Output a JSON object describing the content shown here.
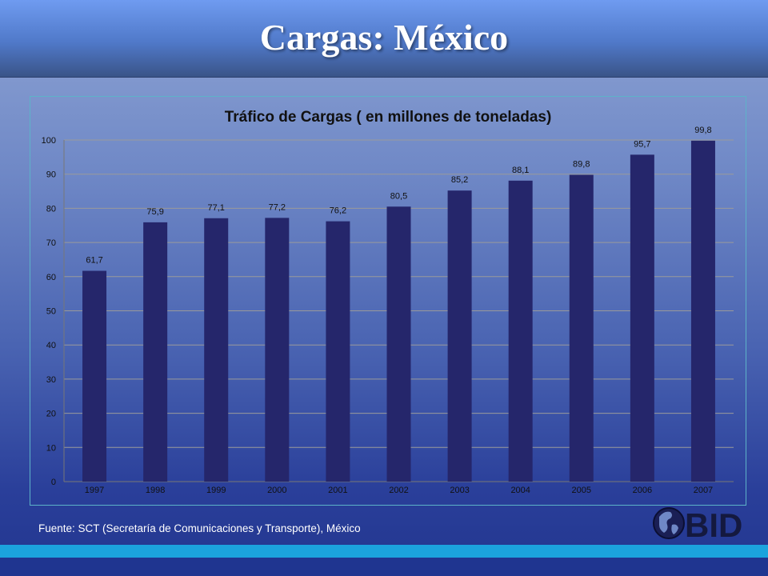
{
  "slide": {
    "title": "Cargas: México",
    "source": "Fuente: SCT (Secretaría de Comunicaciones  y Transporte), México",
    "logo_text": "BID"
  },
  "colors": {
    "bar": "#25266b",
    "grid": "#9a9a9a",
    "chart_border": "#5db3c8",
    "bottom_band": "#1ba3dd"
  },
  "chart_data": {
    "type": "bar",
    "title": "Tráfico de Cargas ( en millones de toneladas)",
    "xlabel": "",
    "ylabel": "",
    "categories": [
      "1997",
      "1998",
      "1999",
      "2000",
      "2001",
      "2002",
      "2003",
      "2004",
      "2005",
      "2006",
      "2007"
    ],
    "values": [
      61.7,
      75.9,
      77.1,
      77.2,
      76.2,
      80.5,
      85.2,
      88.1,
      89.8,
      95.7,
      99.8
    ],
    "data_labels": [
      "61,7",
      "75,9",
      "77,1",
      "77,2",
      "76,2",
      "80,5",
      "85,2",
      "88,1",
      "89,8",
      "95,7",
      "99,8"
    ],
    "ylim": [
      0,
      100
    ],
    "yticks": [
      0,
      10,
      20,
      30,
      40,
      50,
      60,
      70,
      80,
      90,
      100
    ],
    "grid": true,
    "legend": "none"
  }
}
